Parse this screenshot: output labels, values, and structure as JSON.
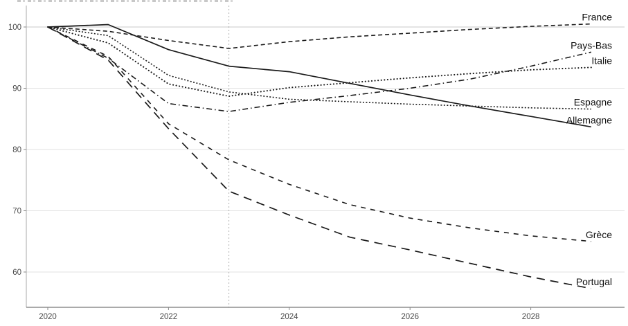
{
  "chart_data": {
    "type": "line",
    "title": "",
    "xlabel": "",
    "ylabel": "",
    "x": [
      2020,
      2021,
      2022,
      2023,
      2024,
      2025,
      2026,
      2027,
      2028,
      2029
    ],
    "xticks": [
      2020,
      2022,
      2024,
      2026,
      2028
    ],
    "yticks": [
      60,
      70,
      80,
      90,
      100
    ],
    "xlim": [
      2019.65,
      2029.9
    ],
    "ylim": [
      55.5,
      103.3
    ],
    "grid": "horizontal",
    "legend_position": "right-end-labels",
    "reference_line_x": 2023,
    "line_color": "#1a1a1a",
    "axis_color": "#888888",
    "grid_color": "#e2e2e2",
    "baseline_grid_color": "#c9c9c9",
    "reference_line_color": "#b0b0b0",
    "series": [
      {
        "name": "France",
        "linestyle": "dashed",
        "values": [
          100,
          99.3,
          97.8,
          96.5,
          97.6,
          98.4,
          99.0,
          99.6,
          100.1,
          100.5
        ]
      },
      {
        "name": "Pays-Bas",
        "linestyle": "dashdot",
        "values": [
          100,
          94.9,
          87.5,
          86.2,
          87.7,
          88.8,
          90.0,
          91.5,
          93.6,
          95.9
        ]
      },
      {
        "name": "Italie",
        "linestyle": "dotted",
        "values": [
          100,
          97.4,
          90.7,
          88.7,
          90.1,
          90.9,
          91.7,
          92.4,
          93.0,
          93.4
        ]
      },
      {
        "name": "Espagne",
        "linestyle": "densely-dotted",
        "values": [
          100,
          98.6,
          92.1,
          89.4,
          88.2,
          87.8,
          87.4,
          87.1,
          86.8,
          86.6
        ]
      },
      {
        "name": "Allemagne",
        "linestyle": "solid",
        "values": [
          100,
          100.4,
          96.3,
          93.6,
          92.7,
          90.8,
          88.9,
          87.1,
          85.4,
          83.7
        ]
      },
      {
        "name": "Grèce",
        "linestyle": "medium-dashed",
        "values": [
          100,
          95.2,
          84.2,
          78.3,
          74.3,
          71.0,
          68.8,
          67.2,
          65.9,
          65.0
        ]
      },
      {
        "name": "Portugal",
        "linestyle": "long-dashed",
        "values": [
          100,
          94.6,
          83.4,
          73.2,
          69.3,
          65.7,
          63.6,
          61.4,
          59.2,
          57.3
        ]
      }
    ]
  }
}
